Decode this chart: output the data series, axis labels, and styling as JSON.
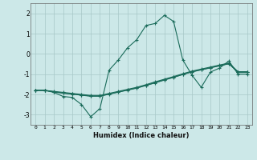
{
  "title": "",
  "xlabel": "Humidex (Indice chaleur)",
  "ylabel": "",
  "background_color": "#cce8e8",
  "grid_color": "#b0cccc",
  "line_color": "#1a6b5a",
  "xlim": [
    -0.5,
    23.5
  ],
  "ylim": [
    -3.5,
    2.5
  ],
  "yticks": [
    -3,
    -2,
    -1,
    0,
    1,
    2
  ],
  "xticks": [
    0,
    1,
    2,
    3,
    4,
    5,
    6,
    7,
    8,
    9,
    10,
    11,
    12,
    13,
    14,
    15,
    16,
    17,
    18,
    19,
    20,
    21,
    22,
    23
  ],
  "main_line_x": [
    0,
    1,
    2,
    3,
    4,
    5,
    6,
    7,
    8,
    9,
    10,
    11,
    12,
    13,
    14,
    15,
    16,
    17,
    18,
    19,
    20,
    21,
    22,
    23
  ],
  "main_line_y": [
    -1.8,
    -1.8,
    -1.9,
    -2.1,
    -2.15,
    -2.5,
    -3.1,
    -2.7,
    -0.8,
    -0.3,
    0.3,
    0.7,
    1.4,
    1.5,
    1.9,
    1.6,
    -0.3,
    -1.05,
    -1.65,
    -0.9,
    -0.7,
    -0.35,
    -1.0,
    -1.0
  ],
  "line2_x": [
    0,
    1,
    2,
    3,
    4,
    5,
    6,
    7,
    8,
    9,
    10,
    11,
    12,
    13,
    14,
    15,
    16,
    17,
    18,
    19,
    20,
    21,
    22,
    23
  ],
  "line2_y": [
    -1.8,
    -1.8,
    -1.85,
    -1.9,
    -1.95,
    -2.0,
    -2.05,
    -2.05,
    -1.95,
    -1.85,
    -1.75,
    -1.65,
    -1.52,
    -1.38,
    -1.25,
    -1.12,
    -0.98,
    -0.85,
    -0.75,
    -0.65,
    -0.55,
    -0.45,
    -0.88,
    -0.88
  ],
  "line3_x": [
    0,
    1,
    2,
    3,
    4,
    5,
    6,
    7,
    8,
    9,
    10,
    11,
    12,
    13,
    14,
    15,
    16,
    17,
    18,
    19,
    20,
    21,
    22,
    23
  ],
  "line3_y": [
    -1.8,
    -1.8,
    -1.87,
    -1.93,
    -1.98,
    -2.03,
    -2.08,
    -2.08,
    -1.98,
    -1.88,
    -1.78,
    -1.68,
    -1.55,
    -1.42,
    -1.28,
    -1.15,
    -1.01,
    -0.88,
    -0.78,
    -0.68,
    -0.58,
    -0.48,
    -0.9,
    -0.9
  ],
  "line4_x": [
    0,
    1,
    2,
    3,
    4,
    5,
    6,
    7,
    8,
    9,
    10,
    11,
    12,
    13,
    14,
    15,
    16,
    17,
    18,
    19,
    20,
    21,
    22,
    23
  ],
  "line4_y": [
    -1.8,
    -1.8,
    -1.88,
    -1.94,
    -1.99,
    -2.04,
    -2.09,
    -2.09,
    -1.99,
    -1.89,
    -1.79,
    -1.69,
    -1.56,
    -1.43,
    -1.29,
    -1.16,
    -1.02,
    -0.89,
    -0.79,
    -0.69,
    -0.59,
    -0.49,
    -0.91,
    -0.91
  ]
}
